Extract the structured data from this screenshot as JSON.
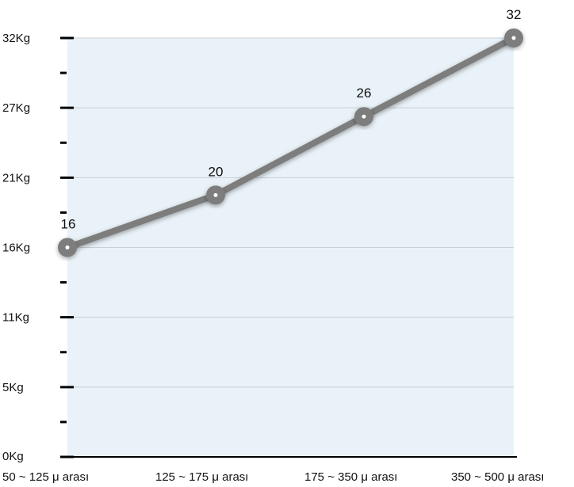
{
  "chart_data": {
    "type": "line",
    "categories": [
      "50 ~ 125 μ arası",
      "125 ~ 175 μ arası",
      "175 ~ 350 μ arası",
      "350 ~ 500 μ arası"
    ],
    "series": [
      {
        "values": [
          16,
          20,
          26,
          32
        ]
      }
    ],
    "data_labels": [
      "16",
      "20",
      "26",
      "32"
    ],
    "y_tick_labels": [
      "0Kg",
      "5Kg",
      "11Kg",
      "16Kg",
      "21Kg",
      "27Kg",
      "32Kg"
    ],
    "ylim": [
      0,
      32
    ],
    "grid": true,
    "legend": "none",
    "colors": {
      "plot_background": "#e9f2f8",
      "line": "#7b7d7b",
      "marker_center": "#ffffff",
      "gridline": "#c9cfd4",
      "axis": "#000000"
    }
  }
}
